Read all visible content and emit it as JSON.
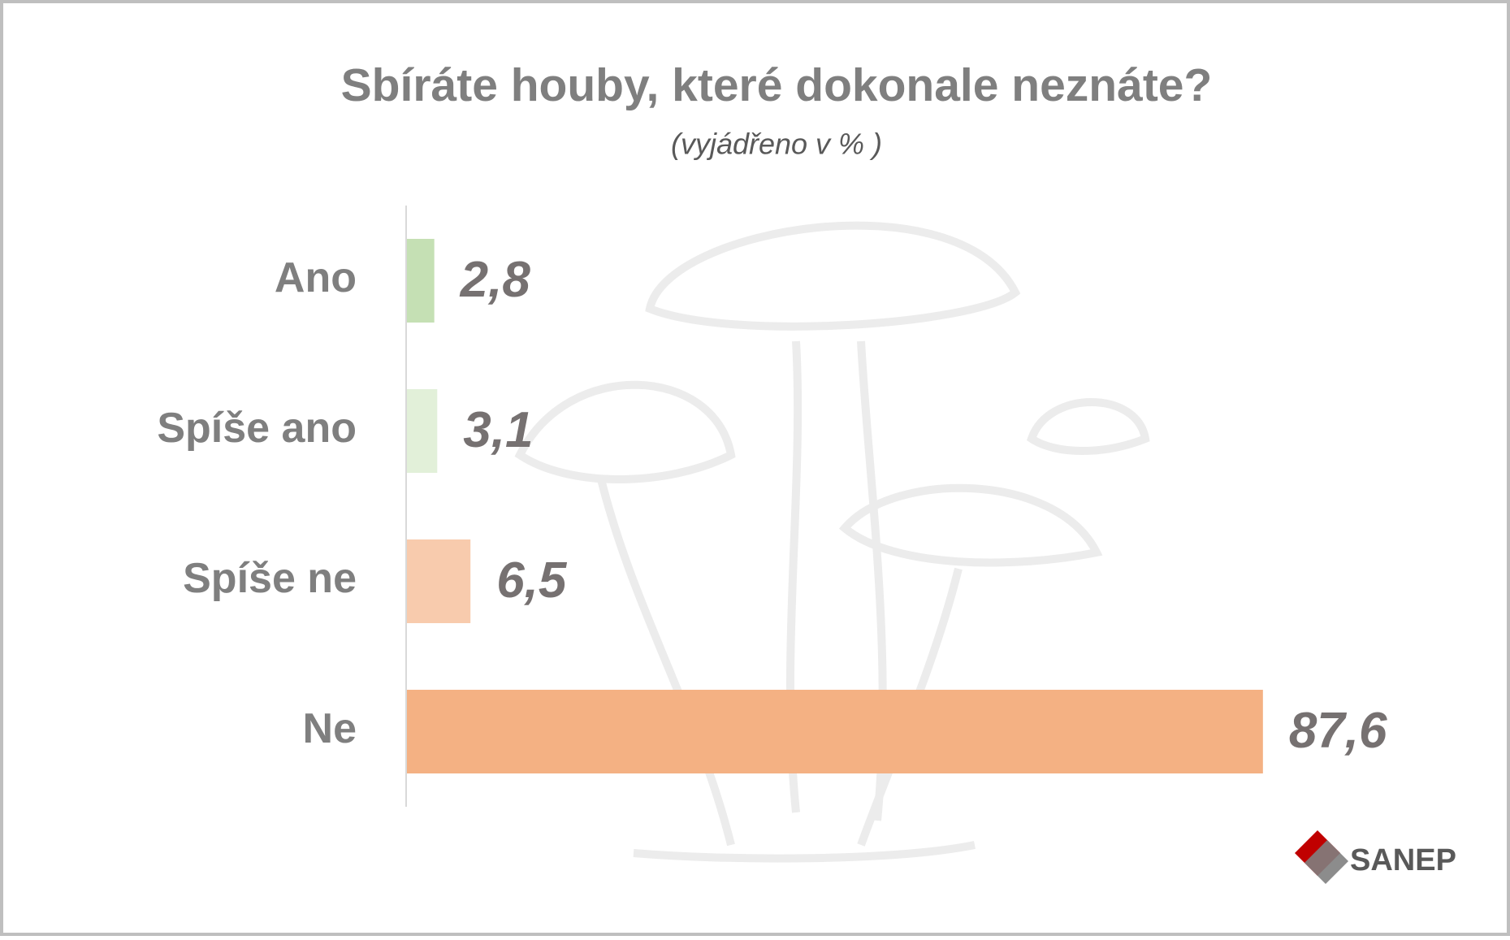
{
  "chart_data": {
    "type": "bar",
    "orientation": "horizontal",
    "title": "Sbíráte houby, které dokonale neznáte?",
    "subtitle": "(vyjádřeno v % )",
    "categories": [
      "Ano",
      "Spíše ano",
      "Spíše ne",
      "Ne"
    ],
    "values": [
      2.8,
      3.1,
      6.5,
      87.6
    ],
    "value_labels": [
      "2,8",
      "3,1",
      "6,5",
      "87,6"
    ],
    "colors": [
      "#c5e0b4",
      "#e2f0d9",
      "#f8cbad",
      "#f4b183"
    ],
    "logo": "SANEP"
  }
}
